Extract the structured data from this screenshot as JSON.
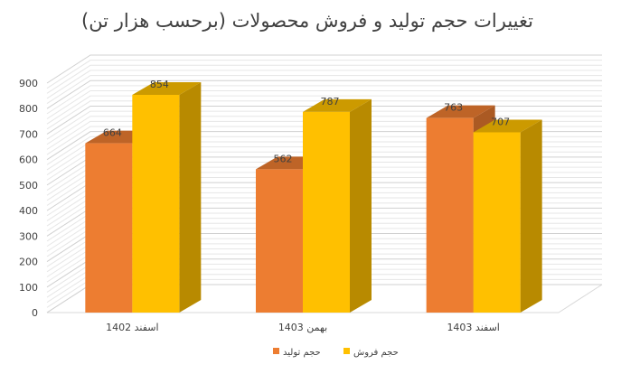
{
  "chart_data": {
    "type": "bar",
    "title": "تغییرات حجم تولید و فروش محصولات (برحسب هزار تن)",
    "categories": [
      "اسفند 1402",
      "بهمن 1403",
      "اسفند 1403"
    ],
    "series": [
      {
        "name": "حجم تولید",
        "values": [
          664,
          562,
          763
        ],
        "color": "#ED7D31"
      },
      {
        "name": "حجم فروش",
        "values": [
          854,
          787,
          707
        ],
        "color": "#FFC000"
      }
    ],
    "ylim": [
      0,
      900
    ],
    "yticks": [
      0,
      100,
      200,
      300,
      400,
      500,
      600,
      700,
      800,
      900
    ],
    "xlabel": "",
    "ylabel": "",
    "grid": true,
    "legend": "bottom",
    "style": "3d-clustered-column"
  }
}
